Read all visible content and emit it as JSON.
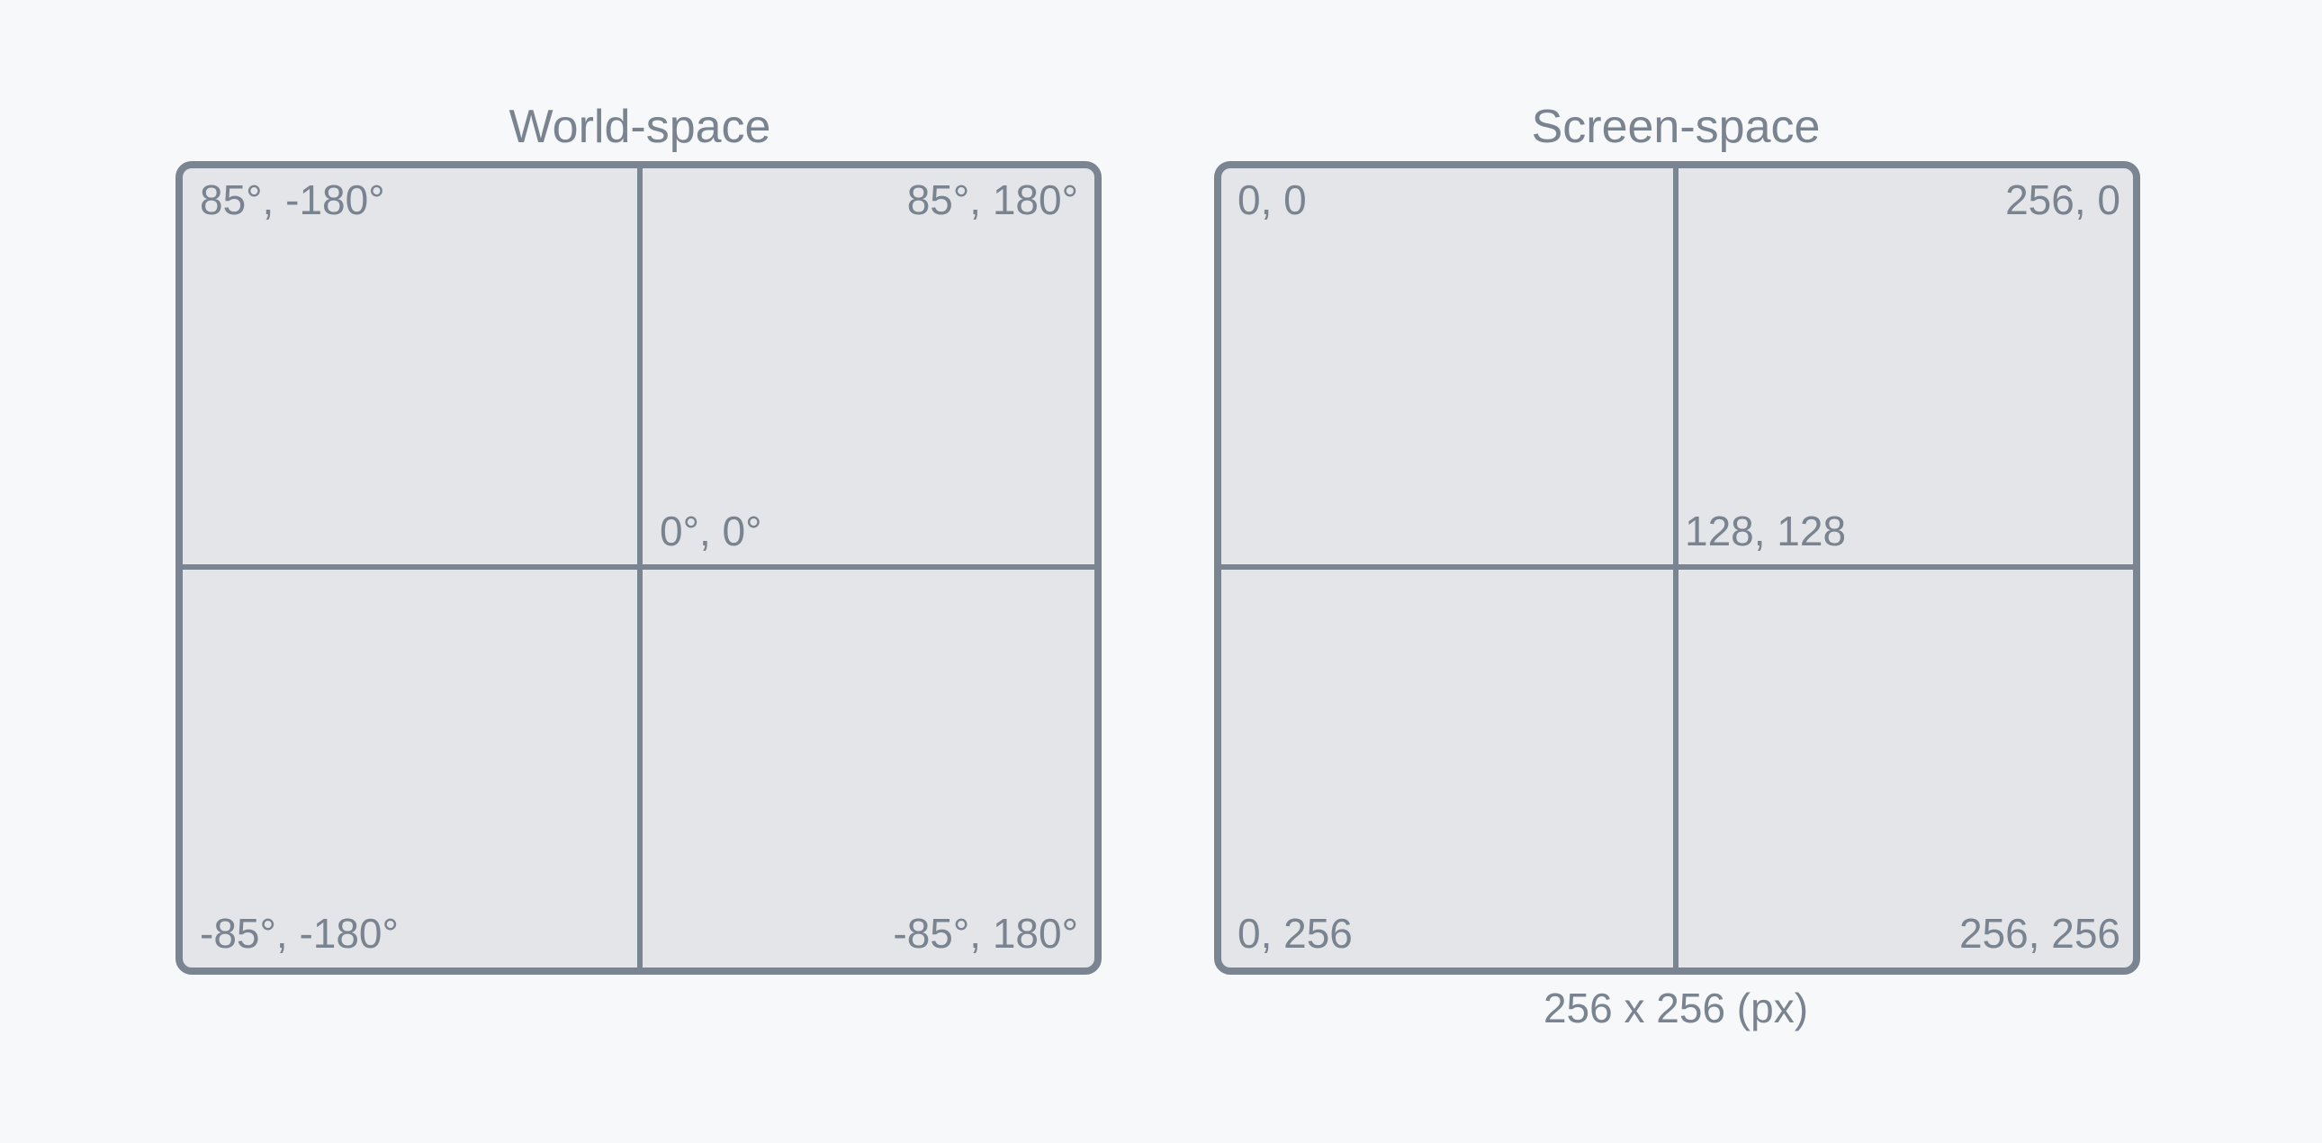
{
  "colors": {
    "background": "#f7f8fa",
    "panel_fill": "#e3e5e8",
    "stroke": "#7b8491",
    "text": "#7a8390"
  },
  "world": {
    "title": "World-space",
    "top_left": "85°, -180°",
    "top_right": "85°, 180°",
    "center": "0°, 0°",
    "bottom_left": "-85°, -180°",
    "bottom_right": "-85°, 180°"
  },
  "screen": {
    "title": "Screen-space",
    "top_left": "0, 0",
    "top_right": "256, 0",
    "center": "128, 128",
    "bottom_left": "0, 256",
    "bottom_right": "256, 256",
    "size_caption": "256 x 256 (px)"
  }
}
